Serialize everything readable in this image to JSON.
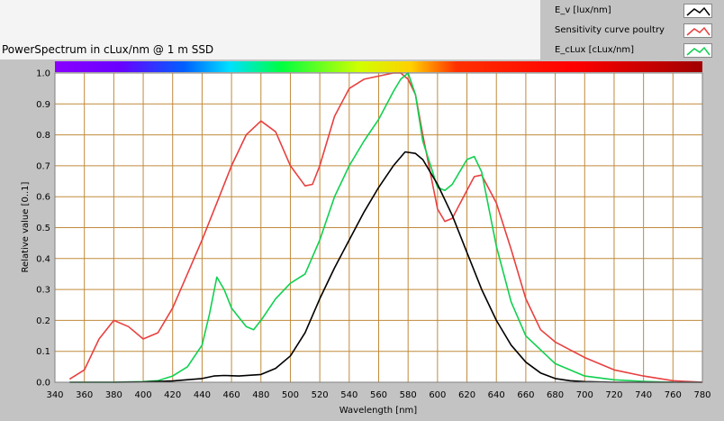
{
  "chart_data": {
    "type": "line",
    "title": "PowerSpectrum in cLux/nm @ 1 m SSD",
    "xlabel": "Wavelength [nm]",
    "ylabel": "Relative value [0..1]",
    "xlim": [
      340,
      780
    ],
    "ylim": [
      0,
      1.0
    ],
    "x_ticks": [
      340,
      360,
      380,
      400,
      420,
      440,
      460,
      480,
      500,
      520,
      540,
      560,
      580,
      600,
      620,
      640,
      660,
      680,
      700,
      720,
      740,
      760,
      780
    ],
    "y_ticks": [
      "0.0",
      "0.1",
      "0.2",
      "0.3",
      "0.4",
      "0.5",
      "0.6",
      "0.7",
      "0.8",
      "0.9",
      "1.0"
    ],
    "grid": true,
    "legend_position": "top-right",
    "series": [
      {
        "name": "E_v [lux/nm]",
        "color": "#000000",
        "x": [
          350,
          380,
          400,
          420,
          440,
          448,
          455,
          465,
          480,
          490,
          500,
          510,
          520,
          530,
          540,
          550,
          560,
          570,
          578,
          585,
          590,
          600,
          610,
          620,
          630,
          640,
          650,
          660,
          670,
          680,
          690,
          700,
          720,
          760,
          780
        ],
        "y": [
          0.0,
          0.0,
          0.001,
          0.004,
          0.012,
          0.02,
          0.022,
          0.02,
          0.025,
          0.045,
          0.085,
          0.16,
          0.27,
          0.37,
          0.46,
          0.55,
          0.63,
          0.7,
          0.745,
          0.74,
          0.72,
          0.64,
          0.54,
          0.42,
          0.3,
          0.2,
          0.12,
          0.065,
          0.03,
          0.012,
          0.005,
          0.002,
          0.0,
          0.0,
          0.0
        ]
      },
      {
        "name": "Sensitivity curve poultry",
        "color": "#e84040",
        "x": [
          350,
          360,
          370,
          380,
          390,
          400,
          410,
          420,
          430,
          440,
          450,
          460,
          470,
          480,
          490,
          500,
          510,
          515,
          520,
          530,
          540,
          550,
          560,
          570,
          575,
          580,
          585,
          590,
          600,
          605,
          610,
          620,
          625,
          630,
          640,
          650,
          660,
          670,
          680,
          700,
          720,
          740,
          760,
          780
        ],
        "y": [
          0.01,
          0.04,
          0.14,
          0.2,
          0.18,
          0.14,
          0.16,
          0.24,
          0.35,
          0.46,
          0.58,
          0.7,
          0.8,
          0.845,
          0.81,
          0.7,
          0.635,
          0.64,
          0.7,
          0.86,
          0.95,
          0.98,
          0.99,
          1.0,
          1.0,
          0.98,
          0.93,
          0.8,
          0.56,
          0.52,
          0.53,
          0.62,
          0.665,
          0.67,
          0.58,
          0.43,
          0.27,
          0.17,
          0.13,
          0.08,
          0.04,
          0.02,
          0.005,
          0.0
        ]
      },
      {
        "name": "E_cLux [cLux/nm]",
        "color": "#10d050",
        "x": [
          350,
          380,
          400,
          410,
          420,
          430,
          440,
          445,
          450,
          455,
          460,
          470,
          475,
          480,
          490,
          500,
          510,
          520,
          530,
          540,
          550,
          560,
          570,
          575,
          580,
          585,
          590,
          600,
          605,
          610,
          620,
          625,
          630,
          640,
          650,
          660,
          680,
          700,
          720,
          740,
          760
        ],
        "y": [
          0.0,
          0.0,
          0.002,
          0.005,
          0.02,
          0.05,
          0.12,
          0.22,
          0.34,
          0.3,
          0.24,
          0.18,
          0.17,
          0.2,
          0.27,
          0.32,
          0.35,
          0.46,
          0.6,
          0.7,
          0.78,
          0.85,
          0.94,
          0.98,
          1.0,
          0.93,
          0.78,
          0.63,
          0.62,
          0.64,
          0.72,
          0.73,
          0.68,
          0.44,
          0.26,
          0.15,
          0.06,
          0.02,
          0.008,
          0.003,
          0.0
        ]
      }
    ]
  }
}
